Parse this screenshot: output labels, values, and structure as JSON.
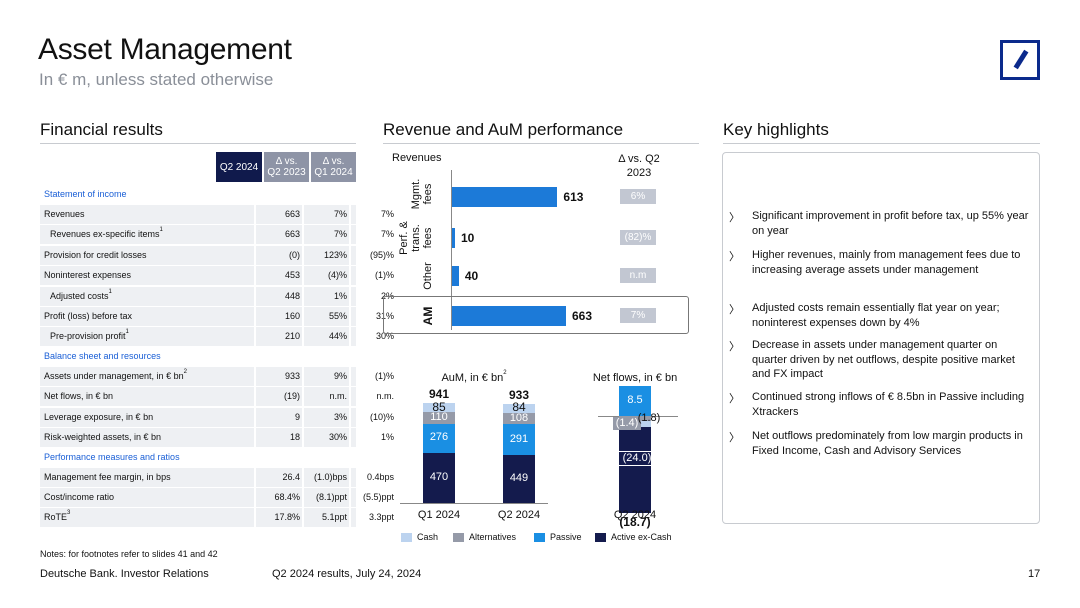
{
  "header": {
    "title": "Asset Management",
    "subtitle": "In € m, unless stated otherwise"
  },
  "financial_results": {
    "title": "Financial results",
    "columns": [
      "Q2 2024",
      "Δ vs. Q2 2023",
      "Δ vs. Q1 2024"
    ],
    "col_line1": [
      "Q2 2024",
      "Δ vs.",
      "Δ vs."
    ],
    "col_line2": [
      "",
      "Q2 2023",
      "Q1 2024"
    ],
    "sections": [
      {
        "label": "Statement of income",
        "rows": [
          {
            "label": "Revenues",
            "sup": "",
            "indent": false,
            "v": [
              "663",
              "7%",
              "7%"
            ]
          },
          {
            "label": "Revenues ex-specific items",
            "sup": "1",
            "indent": true,
            "v": [
              "663",
              "7%",
              "7%"
            ]
          },
          {
            "label": "Provision for credit losses",
            "sup": "",
            "indent": false,
            "v": [
              "(0)",
              "123%",
              "(95)%"
            ]
          },
          {
            "label": "Noninterest expenses",
            "sup": "",
            "indent": false,
            "v": [
              "453",
              "(4)%",
              "(1)%"
            ]
          },
          {
            "label": "Adjusted costs",
            "sup": "1",
            "indent": true,
            "v": [
              "448",
              "1%",
              "2%"
            ]
          },
          {
            "label": "Profit (loss) before tax",
            "sup": "",
            "indent": false,
            "v": [
              "160",
              "55%",
              "31%"
            ]
          },
          {
            "label": "Pre-provision profit",
            "sup": "1",
            "indent": true,
            "v": [
              "210",
              "44%",
              "30%"
            ]
          }
        ]
      },
      {
        "label": "Balance sheet and resources",
        "rows": [
          {
            "label": "Assets under management, in € bn",
            "sup": "2",
            "indent": false,
            "v": [
              "933",
              "9%",
              "(1)%"
            ]
          },
          {
            "label": "Net flows, in € bn",
            "sup": "",
            "indent": false,
            "v": [
              "(19)",
              "n.m.",
              "n.m."
            ]
          },
          {
            "label": "Leverage exposure, in € bn",
            "sup": "",
            "indent": false,
            "v": [
              "9",
              "3%",
              "(10)%"
            ]
          },
          {
            "label": "Risk-weighted assets, in € bn",
            "sup": "",
            "indent": false,
            "v": [
              "18",
              "30%",
              "1%"
            ]
          }
        ]
      },
      {
        "label": "Performance measures and ratios",
        "rows": [
          {
            "label": "Management fee margin, in bps",
            "sup": "",
            "indent": false,
            "v": [
              "26.4",
              "(1.0)bps",
              "0.4bps"
            ]
          },
          {
            "label": "Cost/income ratio",
            "sup": "",
            "indent": false,
            "v": [
              "68.4%",
              "(8.1)ppt",
              "(5.5)ppt"
            ]
          },
          {
            "label": "RoTE",
            "sup": "3",
            "indent": false,
            "v": [
              "17.8%",
              "5.1ppt",
              "3.3ppt"
            ]
          }
        ]
      }
    ],
    "notes": "Notes: for footnotes refer to slides 41 and 42"
  },
  "revenue_perf": {
    "title": "Revenue and AuM performance",
    "revenues_label": "Revenues",
    "delta_label_1": "Δ vs. Q2",
    "delta_label_2": "2023",
    "colors": {
      "bar": "#1c7ad8",
      "badge": "#c2c7d2"
    }
  },
  "chart_data": [
    {
      "type": "bar",
      "orientation": "horizontal",
      "title": "Revenues",
      "categories": [
        "Mgmt. fees",
        "Perf. & trans. fees",
        "Other",
        "AM"
      ],
      "category_lines": [
        [
          "Mgmt.",
          "fees"
        ],
        [
          "Perf. &",
          "trans.",
          "fees"
        ],
        [
          "Other"
        ],
        [
          "AM"
        ]
      ],
      "values": [
        613,
        10,
        40,
        663
      ],
      "value_labels": [
        "613",
        "10",
        "40",
        "663"
      ],
      "delta_title": "Δ vs. Q2 2023",
      "deltas": [
        "6%",
        "(82)%",
        "n.m",
        "7%"
      ],
      "xlim": [
        0,
        663
      ]
    },
    {
      "type": "bar",
      "stacked": true,
      "title": "AuM, in € bn",
      "title_text": "AuM, in € bn",
      "title_sup": "2",
      "categories": [
        "Q1 2024",
        "Q2 2024"
      ],
      "totals": [
        "941",
        "933"
      ],
      "series": [
        {
          "name": "Active ex-Cash",
          "color": "#141b4d",
          "values": [
            470,
            449
          ]
        },
        {
          "name": "Passive",
          "color": "#1a8fe3",
          "values": [
            276,
            291
          ]
        },
        {
          "name": "Alternatives",
          "color": "#959aa8",
          "values": [
            110,
            108
          ]
        },
        {
          "name": "Cash",
          "color": "#bcd3ef",
          "values": [
            85,
            84
          ]
        }
      ],
      "ylim": [
        0,
        941
      ]
    },
    {
      "type": "bar",
      "stacked": true,
      "title": "Net flows, in € bn",
      "categories": [
        "Q2 2024"
      ],
      "total": "(18.7)",
      "series": [
        {
          "name": "Passive",
          "label": "8.5",
          "values": [
            8.5
          ]
        },
        {
          "name": "Alternatives",
          "label": "(1.4)",
          "values": [
            -1.4
          ]
        },
        {
          "name": "Cash",
          "label": "(1.8)",
          "values": [
            -1.8
          ]
        },
        {
          "name": "Active ex-Cash",
          "label": "(24.0)",
          "values": [
            -24.0
          ]
        }
      ]
    }
  ],
  "legend": [
    {
      "name": "Cash",
      "color": "#bcd3ef"
    },
    {
      "name": "Alternatives",
      "color": "#959aa8"
    },
    {
      "name": "Passive",
      "color": "#1a8fe3"
    },
    {
      "name": "Active ex-Cash",
      "color": "#141b4d"
    }
  ],
  "highlights": {
    "title": "Key highlights",
    "items": [
      "Significant improvement in profit before tax, up 55% year on year",
      "Higher revenues, mainly from management fees due to increasing average assets under management",
      "Adjusted costs remain essentially flat year on year; noninterest expenses down by 4%",
      "Decrease in assets under management quarter on quarter driven by net outflows, despite positive market and FX impact",
      "Continued strong inflows of € 8.5bn in Passive including Xtrackers",
      "Net outflows predominately from low margin products in Fixed Income, Cash and Advisory Services"
    ],
    "chevron": "〉"
  },
  "footer": {
    "left": "Deutsche Bank. Investor Relations",
    "middle": "Q2 2024 results, July 24, 2024",
    "page": "17"
  },
  "brand_color": "#0b2a8c"
}
